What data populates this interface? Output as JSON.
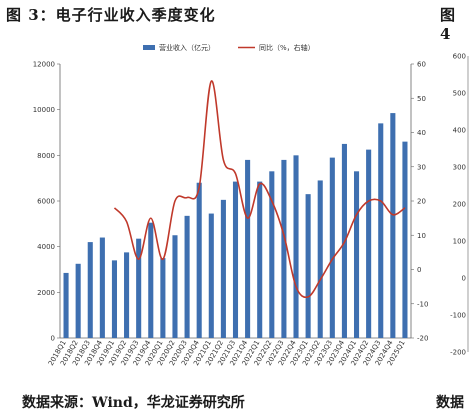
{
  "figure_title": "图 3：电子行业收入季度变化",
  "figure_title_right": "图 4",
  "source": "数据来源：Wind，华龙证券研究所",
  "source_right": "数据",
  "chart_data": {
    "type": "bar+line",
    "legend": {
      "bar_label": "营业收入（亿元）",
      "line_label": "同比（%，右轴）",
      "placement": "top-center"
    },
    "categories": [
      "2018Q1",
      "2018Q2",
      "2018Q3",
      "2018Q4",
      "2019Q1",
      "2019Q2",
      "2019Q3",
      "2019Q4",
      "2020Q1",
      "2020Q2",
      "2020Q3",
      "2020Q4",
      "2021Q1",
      "2021Q2",
      "2021Q3",
      "2021Q4",
      "2022Q1",
      "2022Q2",
      "2022Q3",
      "2022Q4",
      "2023Q1",
      "2023Q2",
      "2023Q3",
      "2023Q4",
      "2024Q1",
      "2024Q2",
      "2024Q3",
      "2024Q4",
      "2025Q1"
    ],
    "series": [
      {
        "name": "营业收入（亿元）",
        "type": "bar",
        "axis": "left",
        "color": "#3e6fb0",
        "values": [
          2850,
          3250,
          4200,
          4400,
          3400,
          3750,
          4350,
          5050,
          3500,
          4500,
          5350,
          6800,
          5450,
          6050,
          6850,
          7800,
          6850,
          7300,
          7800,
          8000,
          6300,
          6900,
          7900,
          8500,
          7300,
          8250,
          9400,
          9850,
          8600
        ]
      },
      {
        "name": "同比（%，右轴）",
        "type": "line",
        "axis": "right",
        "color": "#c0392b",
        "values": [
          null,
          null,
          null,
          null,
          18,
          14,
          3,
          15,
          3,
          20,
          21,
          24,
          55,
          32,
          28,
          15,
          25,
          20,
          10,
          -5,
          -8,
          -3,
          3,
          8,
          16,
          20,
          20,
          16,
          18
        ]
      }
    ],
    "y_left": {
      "min": 0,
      "max": 12000,
      "ticks": [
        0,
        2000,
        4000,
        6000,
        8000,
        10000,
        12000
      ]
    },
    "y_right": {
      "min": -20,
      "max": 60,
      "ticks": [
        -20,
        -10,
        0,
        10,
        20,
        30,
        40,
        50,
        60
      ]
    },
    "right_partial_axis_ticks": [
      "600",
      "500",
      "400",
      "300",
      "200",
      "100",
      "0",
      "-100",
      "-200"
    ],
    "grid": false
  }
}
